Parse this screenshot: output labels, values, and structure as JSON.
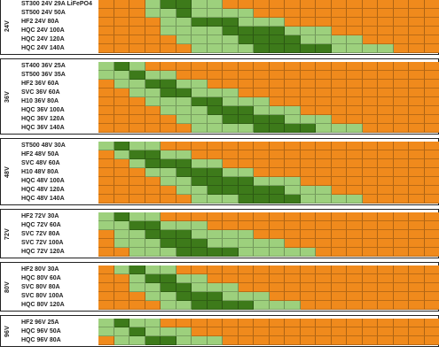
{
  "colors": {
    "orange": "#f08a1c",
    "light_green": "#9dd07d",
    "dark_green": "#3d7a1a"
  },
  "groups": [
    {
      "label": "24V",
      "rows": [
        {
          "name": "ST300 24V 29A LiFePO4",
          "bands": [
            3,
            4,
            6,
            8
          ]
        },
        {
          "name": "ST500 24V 50A",
          "bands": [
            3,
            5,
            6,
            10
          ]
        },
        {
          "name": "HF2 24V 80A",
          "bands": [
            4,
            6,
            9,
            12
          ]
        },
        {
          "name": "HQC 24V 100A",
          "bands": [
            4,
            8,
            12,
            15
          ]
        },
        {
          "name": "HQC 24V 120A",
          "bands": [
            5,
            9,
            13,
            17
          ]
        },
        {
          "name": "HQC 24V 140A",
          "bands": [
            6,
            10,
            15,
            19
          ]
        }
      ]
    },
    {
      "label": "36V",
      "rows": [
        {
          "name": "ST400 36V 25A",
          "bands": [
            0,
            1,
            2,
            3
          ]
        },
        {
          "name": "ST500 36V 35A",
          "bands": [
            0,
            2,
            3,
            5
          ]
        },
        {
          "name": "HF2 36V 60A",
          "bands": [
            1,
            3,
            5,
            7
          ]
        },
        {
          "name": "SVC 36V 60A",
          "bands": [
            2,
            4,
            6,
            9
          ]
        },
        {
          "name": "H10 36V 80A",
          "bands": [
            3,
            6,
            8,
            11
          ]
        },
        {
          "name": "HQC 36V 100A",
          "bands": [
            4,
            7,
            10,
            13
          ]
        },
        {
          "name": "HQC 36V 120A",
          "bands": [
            5,
            8,
            12,
            15
          ]
        },
        {
          "name": "HQC 36V 140A",
          "bands": [
            6,
            10,
            14,
            17
          ]
        }
      ]
    },
    {
      "label": "48V",
      "rows": [
        {
          "name": "ST500 48V 30A",
          "bands": [
            0,
            1,
            2,
            4
          ]
        },
        {
          "name": "HF2 48V 50A",
          "bands": [
            1,
            2,
            4,
            6
          ]
        },
        {
          "name": "SVC 48V 60A",
          "bands": [
            2,
            3,
            6,
            8
          ]
        },
        {
          "name": "H10 48V 80A",
          "bands": [
            3,
            5,
            8,
            10
          ]
        },
        {
          "name": "HQC 48V 100A",
          "bands": [
            4,
            6,
            10,
            13
          ]
        },
        {
          "name": "HQC 48V 120A",
          "bands": [
            5,
            7,
            12,
            15
          ]
        },
        {
          "name": "HQC 48V 140A",
          "bands": [
            6,
            9,
            13,
            17
          ]
        }
      ]
    },
    {
      "label": "72V",
      "rows": [
        {
          "name": "HF2 72V 30A",
          "bands": [
            0,
            1,
            2,
            4
          ]
        },
        {
          "name": "HQC 72V 60A",
          "bands": [
            0,
            2,
            4,
            7
          ]
        },
        {
          "name": "SVC 72V 80A",
          "bands": [
            1,
            3,
            6,
            10
          ]
        },
        {
          "name": "SVC 72V 100A",
          "bands": [
            1,
            4,
            7,
            12
          ]
        },
        {
          "name": "HQC 72V 120A",
          "bands": [
            2,
            5,
            9,
            14
          ]
        }
      ]
    },
    {
      "label": "80V",
      "rows": [
        {
          "name": "HF2 80V 30A",
          "bands": [
            1,
            2,
            3,
            5
          ]
        },
        {
          "name": "HQC 80V 60A",
          "bands": [
            2,
            3,
            5,
            7
          ]
        },
        {
          "name": "SVC 80V 80A",
          "bands": [
            2,
            4,
            6,
            9
          ]
        },
        {
          "name": "SVC 80V 100A",
          "bands": [
            3,
            5,
            8,
            11
          ]
        },
        {
          "name": "HQC 80V 120A",
          "bands": [
            4,
            6,
            10,
            13
          ]
        }
      ]
    },
    {
      "label": "96V",
      "rows": [
        {
          "name": "HF2 96V 25A",
          "bands": [
            0,
            1,
            2,
            4
          ]
        },
        {
          "name": "HQC 96V 50A",
          "bands": [
            0,
            2,
            3,
            6
          ]
        },
        {
          "name": "HQC 96V 80A",
          "bands": [
            1,
            3,
            5,
            8
          ]
        }
      ]
    }
  ]
}
